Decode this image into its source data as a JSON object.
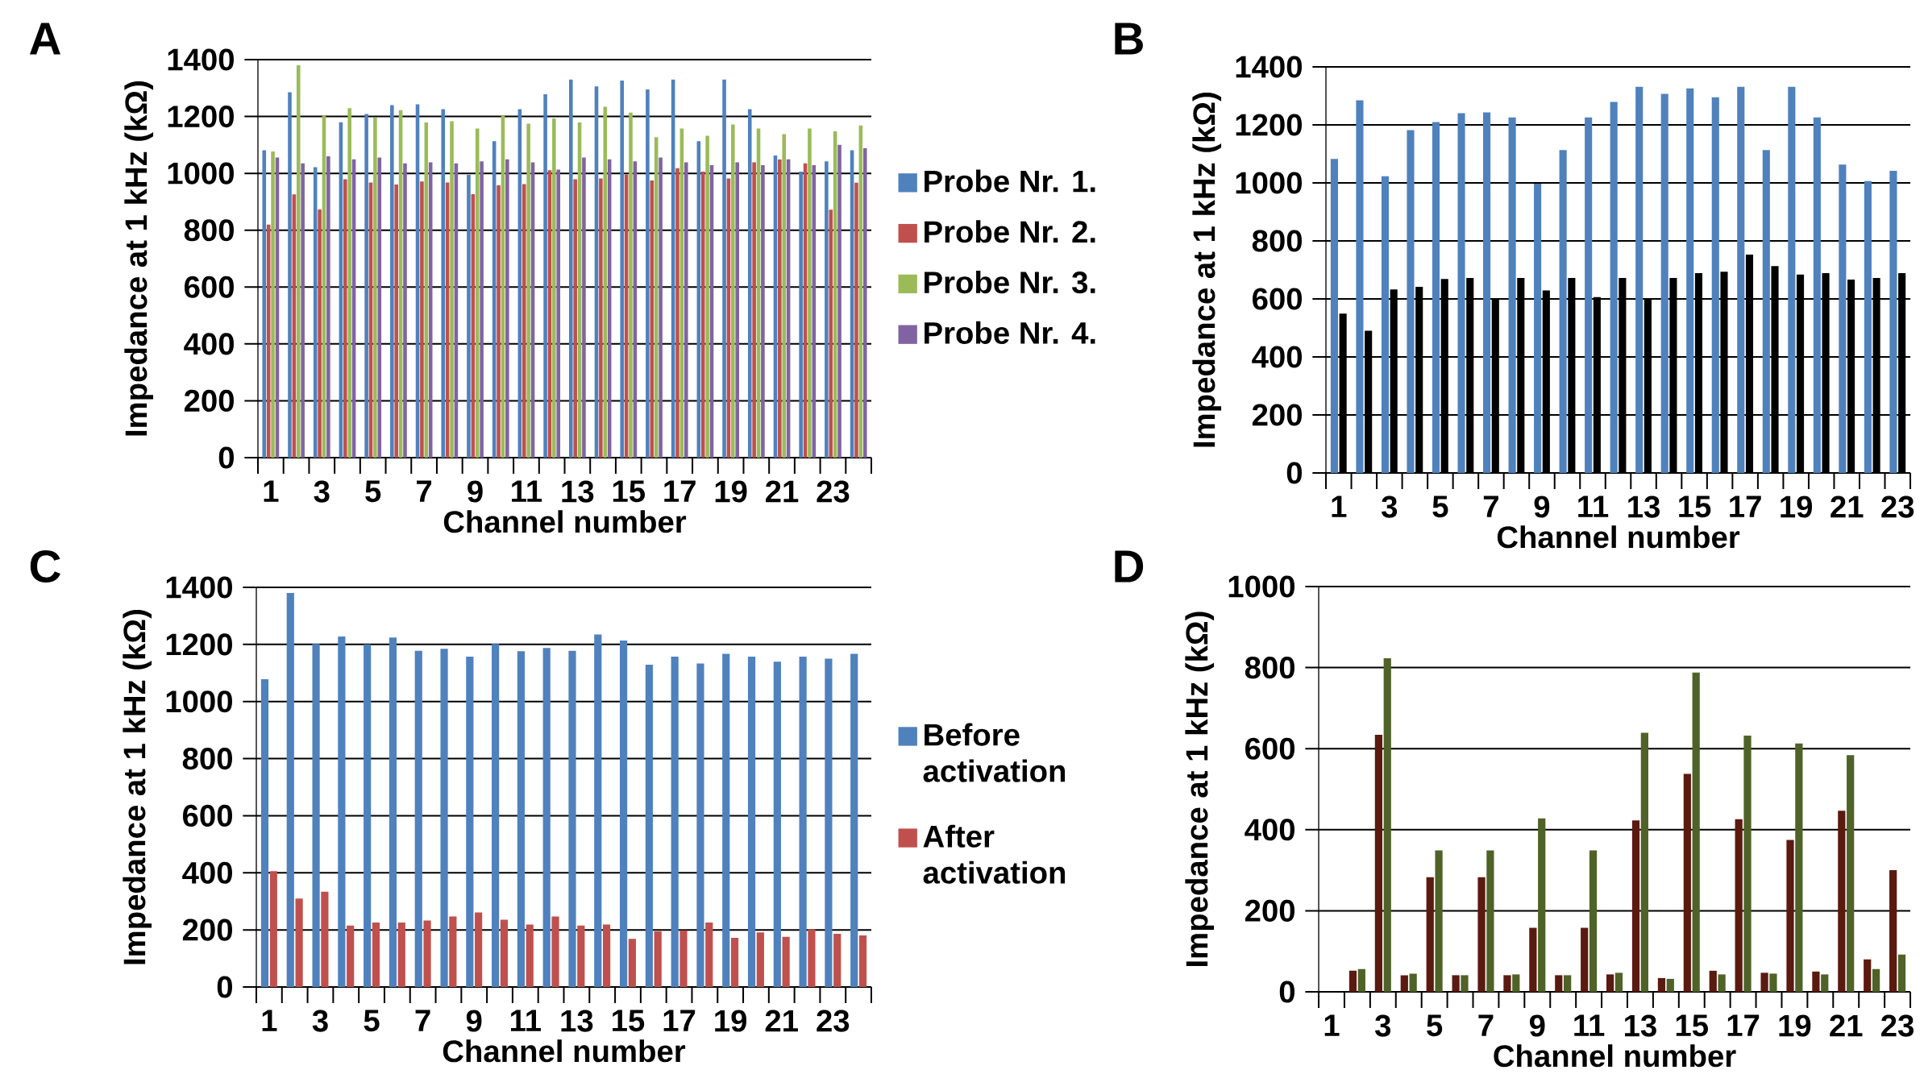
{
  "chart_data": [
    {
      "type": "bar",
      "title": "A",
      "xlabel": "Channel number",
      "ylabel": "Impedance at 1 kHz (kΩ)",
      "categories": [
        "1",
        null,
        "3",
        null,
        "5",
        null,
        "7",
        null,
        "9",
        null,
        "11",
        null,
        "13",
        null,
        "15",
        null,
        "17",
        null,
        "19",
        null,
        "21",
        null,
        "23",
        null
      ],
      "series": [
        {
          "name": "Probe Nr. 1.",
          "color": "#4f81bd",
          "values": [
            1081,
            1285,
            1022,
            1180,
            1209,
            1240,
            1243,
            1226,
            995,
            1113,
            1226,
            1278,
            1330,
            1306,
            1326,
            1295,
            1330,
            1113,
            1330,
            1226,
            1063,
            1006,
            1042,
            1081
          ]
        },
        {
          "name": "Probe Nr. 2.",
          "color": "#c0504d",
          "values": [
            820,
            926,
            873,
            979,
            968,
            961,
            971,
            968,
            927,
            958,
            962,
            1011,
            979,
            982,
            996,
            975,
            1018,
            1006,
            982,
            1039,
            1049,
            1035,
            872,
            967
          ]
        },
        {
          "name": "Probe Nr. 3.",
          "color": "#9bbb59",
          "values": [
            1077,
            1380,
            1203,
            1229,
            1196,
            1222,
            1179,
            1183,
            1158,
            1203,
            1175,
            1193,
            1179,
            1234,
            1214,
            1127,
            1158,
            1132,
            1172,
            1158,
            1138,
            1158,
            1148,
            1168
          ]
        },
        {
          "name": "Probe Nr. 4.",
          "color": "#8064a2",
          "values": [
            1056,
            1035,
            1060,
            1049,
            1056,
            1035,
            1039,
            1035,
            1042,
            1049,
            1039,
            1013,
            1056,
            1049,
            1042,
            1056,
            1039,
            1029,
            1039,
            1029,
            1049,
            1029,
            1100,
            1088
          ]
        }
      ],
      "ylim": [
        0,
        1400
      ],
      "yticks": [
        0,
        200,
        400,
        600,
        800,
        1000,
        1200,
        1400
      ],
      "grid": "y",
      "legend": "right"
    },
    {
      "type": "bar",
      "title": "B",
      "xlabel": "Channel number",
      "ylabel": "Impedance at 1 kHz (kΩ)",
      "categories": [
        "1",
        null,
        "3",
        null,
        "5",
        null,
        "7",
        null,
        "9",
        null,
        "11",
        null,
        "13",
        null,
        "15",
        null,
        "17",
        null,
        "19",
        null,
        "21",
        null,
        "23"
      ],
      "series": [
        {
          "color": "#4f81bd",
          "values": [
            1083,
            1285,
            1023,
            1182,
            1210,
            1240,
            1243,
            1226,
            997,
            1113,
            1226,
            1279,
            1331,
            1307,
            1326,
            1295,
            1331,
            1113,
            1331,
            1226,
            1063,
            1006,
            1042
          ]
        },
        {
          "color": "#000000",
          "values": [
            549,
            490,
            633,
            642,
            669,
            672,
            603,
            672,
            629,
            672,
            606,
            672,
            600,
            672,
            689,
            694,
            753,
            713,
            684,
            689,
            667,
            672,
            689
          ]
        }
      ],
      "ylim": [
        0,
        1400
      ],
      "yticks": [
        0,
        200,
        400,
        600,
        800,
        1000,
        1200,
        1400
      ],
      "grid": "y"
    },
    {
      "type": "bar",
      "title": "C",
      "xlabel": "Channel number",
      "ylabel": "Impedance at 1 kHz (kΩ)",
      "categories": [
        "1",
        null,
        "3",
        null,
        "5",
        null,
        "7",
        null,
        "9",
        null,
        "11",
        null,
        "13",
        null,
        "15",
        null,
        "17",
        null,
        "19",
        null,
        "21",
        null,
        "23",
        null
      ],
      "series": [
        {
          "name": "Before activation",
          "color": "#4f81bd",
          "values": [
            1078,
            1380,
            1202,
            1228,
            1200,
            1224,
            1178,
            1185,
            1157,
            1202,
            1176,
            1188,
            1178,
            1235,
            1214,
            1129,
            1157,
            1133,
            1167,
            1157,
            1140,
            1157,
            1150,
            1167
          ]
        },
        {
          "name": "After activation",
          "color": "#c0504d",
          "values": [
            406,
            310,
            334,
            215,
            226,
            226,
            233,
            247,
            261,
            236,
            219,
            247,
            215,
            219,
            169,
            195,
            198,
            226,
            172,
            191,
            176,
            202,
            186,
            181
          ]
        }
      ],
      "ylim": [
        0,
        1400
      ],
      "yticks": [
        0,
        200,
        400,
        600,
        800,
        1000,
        1200,
        1400
      ],
      "grid": "y",
      "legend": "right"
    },
    {
      "type": "bar",
      "title": "D",
      "xlabel": "Channel number",
      "ylabel": "Impedance at 1 kHz (kΩ)",
      "categories": [
        "1",
        null,
        "3",
        null,
        "5",
        null,
        "7",
        null,
        "9",
        null,
        "11",
        null,
        "13",
        null,
        "15",
        null,
        "17",
        null,
        "19",
        null,
        "21",
        null,
        "23"
      ],
      "series": [
        {
          "color": "#5a1a10",
          "values": [
            null,
            52,
            634,
            41,
            283,
            41,
            283,
            41,
            158,
            41,
            158,
            43,
            423,
            34,
            538,
            52,
            426,
            47,
            375,
            50,
            447,
            80,
            300
          ]
        },
        {
          "color": "#4f6228",
          "values": [
            null,
            56,
            823,
            45,
            349,
            41,
            349,
            43,
            428,
            41,
            349,
            47,
            639,
            32,
            788,
            43,
            632,
            45,
            613,
            43,
            584,
            56,
            92
          ]
        }
      ],
      "ylim": [
        0,
        1000
      ],
      "yticks": [
        0,
        200,
        400,
        600,
        800,
        1000
      ],
      "grid": "y"
    }
  ]
}
